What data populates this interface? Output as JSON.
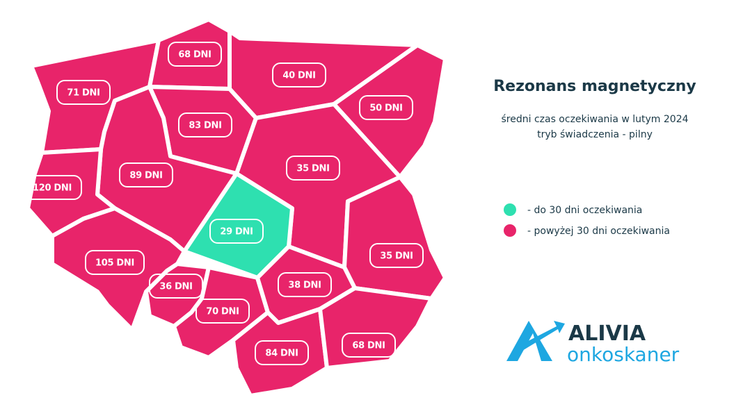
{
  "header": {
    "title": "Rezonans magnetyczny",
    "subtitle": [
      "średni czas oczekiwania w lutym 2024",
      "tryb świadczenia - pilny"
    ]
  },
  "legend": [
    {
      "label": "- do 30 dni oczekiwania",
      "color": "#2ee0b0"
    },
    {
      "label": "- powyżej 30 dni oczekiwania",
      "color": "#e8246a"
    }
  ],
  "regions": [
    {
      "label": "71 DNI",
      "color": "#e8246a"
    },
    {
      "label": "68 DNI",
      "color": "#e8246a"
    },
    {
      "label": "40 DNI",
      "color": "#e8246a"
    },
    {
      "label": "50 DNI",
      "color": "#e8246a"
    },
    {
      "label": "83 DNI",
      "color": "#e8246a"
    },
    {
      "label": "89 DNI",
      "color": "#e8246a"
    },
    {
      "label": "120 DNI",
      "color": "#e8246a"
    },
    {
      "label": "35 DNI",
      "color": "#e8246a"
    },
    {
      "label": "29 DNI",
      "color": "#2ee0b0"
    },
    {
      "label": "35 DNI",
      "color": "#e8246a"
    },
    {
      "label": "105 DNI",
      "color": "#e8246a"
    },
    {
      "label": "36 DNI",
      "color": "#e8246a"
    },
    {
      "label": "70 DNI",
      "color": "#e8246a"
    },
    {
      "label": "38 DNI",
      "color": "#e8246a"
    },
    {
      "label": "84 DNI",
      "color": "#e8246a"
    },
    {
      "label": "68 DNI",
      "color": "#e8246a"
    }
  ],
  "logo": {
    "name": "ALIVIA",
    "tagline": "onkoskaner"
  }
}
